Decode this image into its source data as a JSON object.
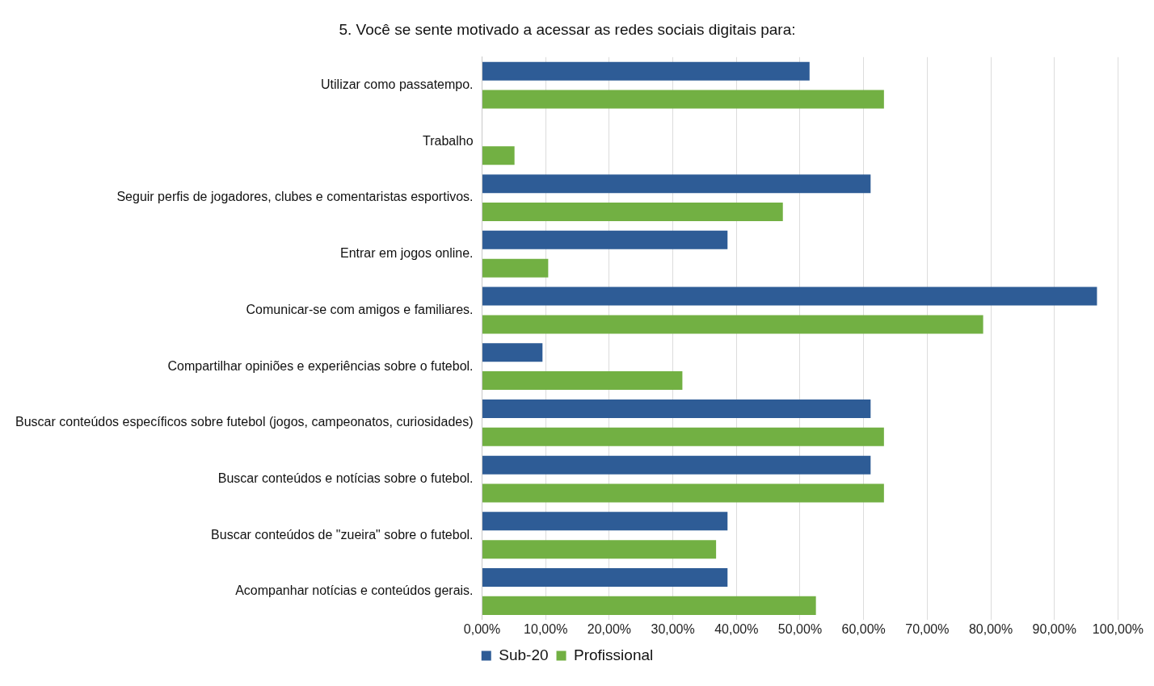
{
  "chart_data": {
    "type": "bar",
    "orientation": "horizontal",
    "title": "5. Você se sente motivado a acessar as redes sociais digitais para:",
    "categories": [
      "Utilizar como passatempo.",
      "Trabalho",
      "Seguir perfis de jogadores, clubes e comentaristas esportivos.",
      "Entrar em jogos online.",
      "Comunicar-se com amigos e familiares.",
      "Compartilhar opiniões e experiências sobre o futebol.",
      "Buscar conteúdos específicos sobre futebol (jogos, campeonatos, curiosidades)",
      "Buscar conteúdos e notícias sobre o futebol.",
      "Buscar conteúdos de \"zueira\" sobre o futebol.",
      "Acompanhar notícias e conteúdos gerais."
    ],
    "series": [
      {
        "name": "Sub-20",
        "color": "#2e5c96",
        "values": [
          51.5,
          0,
          61.1,
          38.6,
          96.7,
          9.5,
          61.1,
          61.1,
          38.6,
          38.6
        ]
      },
      {
        "name": "Profissional",
        "color": "#72b043",
        "values": [
          63.2,
          5.1,
          47.3,
          10.4,
          78.8,
          31.5,
          63.2,
          63.2,
          36.8,
          52.5
        ]
      }
    ],
    "xlim": [
      0,
      100
    ],
    "xticks": [
      {
        "value": 0,
        "label": "0,00%"
      },
      {
        "value": 10,
        "label": "10,00%"
      },
      {
        "value": 20,
        "label": "20,00%"
      },
      {
        "value": 30,
        "label": "30,00%"
      },
      {
        "value": 40,
        "label": "40,00%"
      },
      {
        "value": 50,
        "label": "50,00%"
      },
      {
        "value": 60,
        "label": "60,00%"
      },
      {
        "value": 70,
        "label": "70,00%"
      },
      {
        "value": 80,
        "label": "80,00%"
      },
      {
        "value": 90,
        "label": "90,00%"
      },
      {
        "value": 100,
        "label": "100,00%"
      }
    ],
    "grid": "x",
    "legend": "bottom"
  }
}
